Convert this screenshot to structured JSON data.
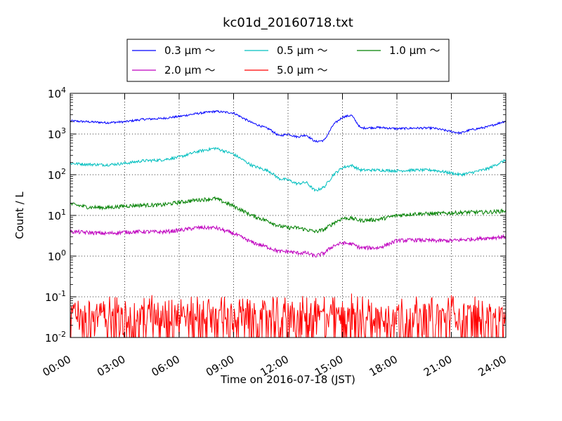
{
  "chart_data": {
    "type": "line",
    "title": "kc01d_20160718.txt",
    "xlabel": "Time on 2016-07-18 (JST)",
    "ylabel": "Count / L",
    "y_scale": "log",
    "ylim": [
      0.01,
      10000
    ],
    "xlim": [
      "00:00",
      "24:00"
    ],
    "x_ticks": [
      "00:00",
      "03:00",
      "06:00",
      "09:00",
      "12:00",
      "15:00",
      "18:00",
      "21:00",
      "24:00"
    ],
    "y_ticks": [
      {
        "base": "10",
        "exp": "-2"
      },
      {
        "base": "10",
        "exp": "-1"
      },
      {
        "base": "10",
        "exp": "0"
      },
      {
        "base": "10",
        "exp": "1"
      },
      {
        "base": "10",
        "exp": "2"
      },
      {
        "base": "10",
        "exp": "3"
      },
      {
        "base": "10",
        "exp": "4"
      }
    ],
    "grid": true,
    "legend_placement": "top-center, outside",
    "series": [
      {
        "name": "0.3 μm ～",
        "color": "#0000ff",
        "points": [
          [
            "00:00",
            2100
          ],
          [
            "01:00",
            2000
          ],
          [
            "02:00",
            1900
          ],
          [
            "03:00",
            2000
          ],
          [
            "04:00",
            2300
          ],
          [
            "05:00",
            2400
          ],
          [
            "06:00",
            2700
          ],
          [
            "07:00",
            3200
          ],
          [
            "08:00",
            3600
          ],
          [
            "09:00",
            3300
          ],
          [
            "10:00",
            1900
          ],
          [
            "11:00",
            1300
          ],
          [
            "11:30",
            900
          ],
          [
            "12:00",
            1000
          ],
          [
            "12:30",
            850
          ],
          [
            "13:00",
            950
          ],
          [
            "13:30",
            650
          ],
          [
            "14:00",
            700
          ],
          [
            "14:30",
            1700
          ],
          [
            "15:00",
            2600
          ],
          [
            "15:30",
            2900
          ],
          [
            "16:00",
            1400
          ],
          [
            "17:00",
            1450
          ],
          [
            "18:00",
            1350
          ],
          [
            "19:00",
            1400
          ],
          [
            "20:00",
            1400
          ],
          [
            "21:00",
            1150
          ],
          [
            "21:30",
            1050
          ],
          [
            "22:00",
            1250
          ],
          [
            "23:00",
            1500
          ],
          [
            "24:00",
            2100
          ]
        ]
      },
      {
        "name": "0.5 μm ～",
        "color": "#00bfbf",
        "points": [
          [
            "00:00",
            190
          ],
          [
            "01:00",
            180
          ],
          [
            "02:00",
            175
          ],
          [
            "03:00",
            190
          ],
          [
            "04:00",
            220
          ],
          [
            "05:00",
            230
          ],
          [
            "06:00",
            270
          ],
          [
            "07:00",
            370
          ],
          [
            "08:00",
            450
          ],
          [
            "09:00",
            320
          ],
          [
            "10:00",
            170
          ],
          [
            "11:00",
            120
          ],
          [
            "11:30",
            80
          ],
          [
            "12:00",
            75
          ],
          [
            "12:30",
            60
          ],
          [
            "13:00",
            65
          ],
          [
            "13:30",
            40
          ],
          [
            "14:00",
            50
          ],
          [
            "14:30",
            100
          ],
          [
            "15:00",
            150
          ],
          [
            "15:30",
            170
          ],
          [
            "16:00",
            130
          ],
          [
            "17:00",
            130
          ],
          [
            "18:00",
            125
          ],
          [
            "19:00",
            130
          ],
          [
            "20:00",
            130
          ],
          [
            "21:00",
            110
          ],
          [
            "21:30",
            100
          ],
          [
            "22:00",
            110
          ],
          [
            "23:00",
            140
          ],
          [
            "24:00",
            230
          ]
        ]
      },
      {
        "name": "1.0 μm ～",
        "color": "#008000",
        "points": [
          [
            "00:00",
            19
          ],
          [
            "01:00",
            16
          ],
          [
            "02:00",
            15.5
          ],
          [
            "03:00",
            17
          ],
          [
            "04:00",
            18
          ],
          [
            "05:00",
            18
          ],
          [
            "06:00",
            21
          ],
          [
            "07:00",
            24
          ],
          [
            "08:00",
            26
          ],
          [
            "09:00",
            17
          ],
          [
            "10:00",
            10
          ],
          [
            "11:00",
            7
          ],
          [
            "11:30",
            5.5
          ],
          [
            "12:00",
            5
          ],
          [
            "12:30",
            5
          ],
          [
            "13:00",
            4.5
          ],
          [
            "13:30",
            4
          ],
          [
            "14:00",
            4.5
          ],
          [
            "14:30",
            6.5
          ],
          [
            "15:00",
            8.5
          ],
          [
            "15:30",
            8.5
          ],
          [
            "16:00",
            7.5
          ],
          [
            "17:00",
            8
          ],
          [
            "18:00",
            10
          ],
          [
            "19:00",
            11
          ],
          [
            "20:00",
            11
          ],
          [
            "21:00",
            11.5
          ],
          [
            "22:00",
            12
          ],
          [
            "23:00",
            12
          ],
          [
            "24:00",
            13
          ]
        ]
      },
      {
        "name": "2.0 μm ～",
        "color": "#bf00bf",
        "points": [
          [
            "00:00",
            4
          ],
          [
            "01:00",
            3.8
          ],
          [
            "02:00",
            3.6
          ],
          [
            "03:00",
            3.9
          ],
          [
            "04:00",
            4
          ],
          [
            "05:00",
            3.9
          ],
          [
            "06:00",
            4.3
          ],
          [
            "07:00",
            5
          ],
          [
            "08:00",
            5
          ],
          [
            "09:00",
            3.6
          ],
          [
            "10:00",
            2.2
          ],
          [
            "11:00",
            1.6
          ],
          [
            "11:30",
            1.3
          ],
          [
            "12:00",
            1.3
          ],
          [
            "12:30",
            1.2
          ],
          [
            "13:00",
            1.2
          ],
          [
            "13:30",
            1
          ],
          [
            "14:00",
            1.2
          ],
          [
            "14:30",
            1.8
          ],
          [
            "15:00",
            2.1
          ],
          [
            "15:30",
            2
          ],
          [
            "16:00",
            1.6
          ],
          [
            "17:00",
            1.6
          ],
          [
            "18:00",
            2.4
          ],
          [
            "19:00",
            2.5
          ],
          [
            "20:00",
            2.4
          ],
          [
            "21:00",
            2.4
          ],
          [
            "22:00",
            2.6
          ],
          [
            "23:00",
            2.8
          ],
          [
            "24:00",
            3
          ]
        ]
      },
      {
        "name": "5.0 μm ～",
        "color": "#ff0000",
        "noise_range": [
          0.01,
          0.12
        ],
        "typical": 0.035,
        "points": [
          [
            "00:00",
            0.05
          ],
          [
            "04:30",
            0.11
          ],
          [
            "07:00",
            0.1
          ],
          [
            "08:30",
            0.1
          ],
          [
            "09:30",
            0.09
          ],
          [
            "14:00",
            0.1
          ],
          [
            "15:30",
            0.13
          ],
          [
            "21:00",
            0.11
          ],
          [
            "24:00",
            0.05
          ]
        ]
      }
    ]
  }
}
